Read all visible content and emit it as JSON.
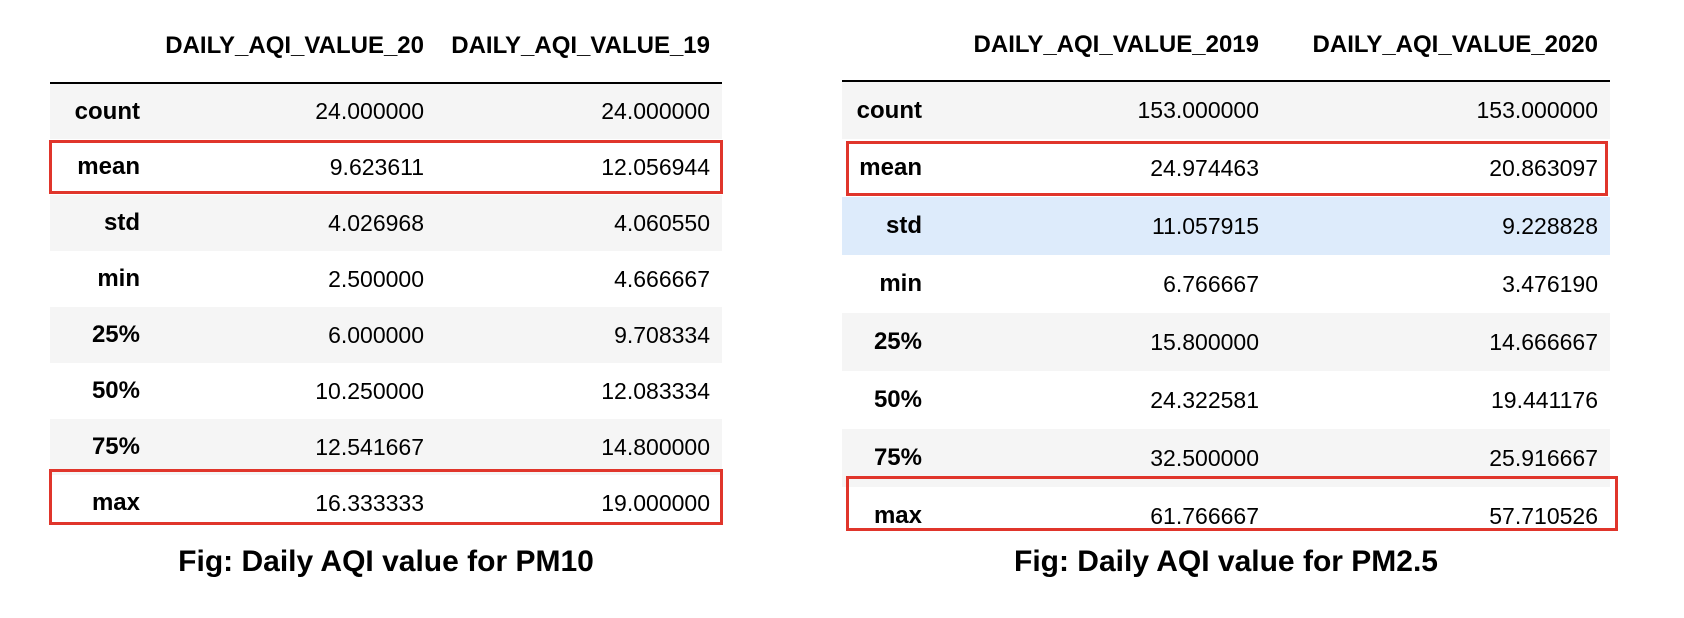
{
  "pm10": {
    "columns": [
      "DAILY_AQI_VALUE_20",
      "DAILY_AQI_VALUE_19"
    ],
    "rows": [
      {
        "label": "count",
        "v1": "24.000000",
        "v2": "24.000000"
      },
      {
        "label": "mean",
        "v1": "9.623611",
        "v2": "12.056944"
      },
      {
        "label": "std",
        "v1": "4.026968",
        "v2": "4.060550"
      },
      {
        "label": "min",
        "v1": "2.500000",
        "v2": "4.666667"
      },
      {
        "label": "25%",
        "v1": "6.000000",
        "v2": "9.708334"
      },
      {
        "label": "50%",
        "v1": "10.250000",
        "v2": "12.083334"
      },
      {
        "label": "75%",
        "v1": "12.541667",
        "v2": "14.800000"
      },
      {
        "label": "max",
        "v1": "16.333333",
        "v2": "19.000000"
      }
    ],
    "highlighted_rows": [
      "mean",
      "max"
    ],
    "caption": "Fig: Daily AQI value for PM10"
  },
  "pm25": {
    "columns": [
      "DAILY_AQI_VALUE_2019",
      "DAILY_AQI_VALUE_2020"
    ],
    "rows": [
      {
        "label": "count",
        "v1": "153.000000",
        "v2": "153.000000"
      },
      {
        "label": "mean",
        "v1": "24.974463",
        "v2": "20.863097"
      },
      {
        "label": "std",
        "v1": "11.057915",
        "v2": "9.228828"
      },
      {
        "label": "min",
        "v1": "6.766667",
        "v2": "3.476190"
      },
      {
        "label": "25%",
        "v1": "15.800000",
        "v2": "14.666667"
      },
      {
        "label": "50%",
        "v1": "24.322581",
        "v2": "19.441176"
      },
      {
        "label": "75%",
        "v1": "32.500000",
        "v2": "25.916667"
      },
      {
        "label": "max",
        "v1": "61.766667",
        "v2": "57.710526"
      }
    ],
    "highlighted_rows": [
      "mean",
      "max"
    ],
    "hovered_row": "std",
    "caption": "Fig: Daily AQI value for PM2.5"
  },
  "colors": {
    "highlight_border": "#e0352b",
    "stripe": "#f5f5f5",
    "hover_row": "#ddebfb"
  }
}
